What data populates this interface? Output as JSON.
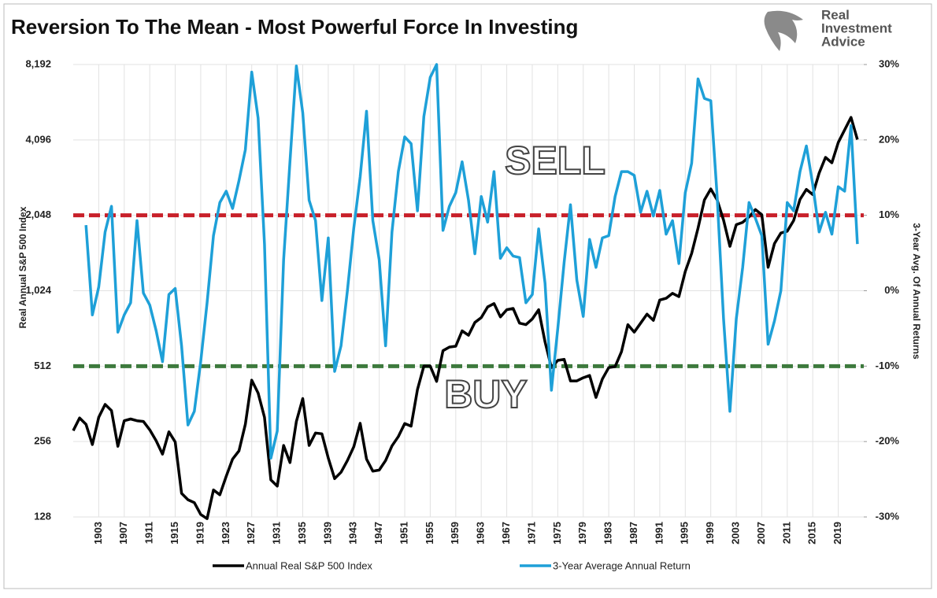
{
  "chart_data": {
    "type": "line",
    "title": "Reversion To The Mean - Most Powerful Force In Investing",
    "logo": [
      "Real",
      "Investment",
      "Advice"
    ],
    "y_label": "Real Annual S&P 500 Index",
    "y2_label": "3-Year Avg. Of Annual Returns",
    "x": [
      1899,
      1900,
      1901,
      1902,
      1903,
      1904,
      1905,
      1906,
      1907,
      1908,
      1909,
      1910,
      1911,
      1912,
      1913,
      1914,
      1915,
      1916,
      1917,
      1918,
      1919,
      1920,
      1921,
      1922,
      1923,
      1924,
      1925,
      1926,
      1927,
      1928,
      1929,
      1930,
      1931,
      1932,
      1933,
      1934,
      1935,
      1936,
      1937,
      1938,
      1939,
      1940,
      1941,
      1942,
      1943,
      1944,
      1945,
      1946,
      1947,
      1948,
      1949,
      1950,
      1951,
      1952,
      1953,
      1954,
      1955,
      1956,
      1957,
      1958,
      1959,
      1960,
      1961,
      1962,
      1963,
      1964,
      1965,
      1966,
      1967,
      1968,
      1969,
      1970,
      1971,
      1972,
      1973,
      1974,
      1975,
      1976,
      1977,
      1978,
      1979,
      1980,
      1981,
      1982,
      1983,
      1984,
      1985,
      1986,
      1987,
      1988,
      1989,
      1990,
      1991,
      1992,
      1993,
      1994,
      1995,
      1996,
      1997,
      1998,
      1999,
      2000,
      2001,
      2002,
      2003,
      2004,
      2005,
      2006,
      2007,
      2008,
      2009,
      2010,
      2011,
      2012,
      2013,
      2014,
      2015,
      2016,
      2017,
      2018,
      2019,
      2020,
      2021,
      2022
    ],
    "xlim": [
      1899,
      2023
    ],
    "xticks": [
      1903,
      1907,
      1911,
      1915,
      1919,
      1923,
      1927,
      1931,
      1935,
      1939,
      1943,
      1947,
      1951,
      1955,
      1959,
      1963,
      1967,
      1971,
      1975,
      1979,
      1983,
      1987,
      1991,
      1995,
      1999,
      2003,
      2007,
      2011,
      2015,
      2019
    ],
    "y_scale": "log",
    "ylim": [
      128,
      8192
    ],
    "yticks": [
      128,
      256,
      512,
      {
        "value": 1024,
        "label": "1,024"
      },
      {
        "value": 2048,
        "label": "2,048"
      },
      {
        "value": 4096,
        "label": "4,096"
      },
      {
        "value": 8192,
        "label": "8,192"
      }
    ],
    "y2lim": [
      -30,
      30
    ],
    "y2ticks": [
      {
        "value": -30,
        "label": "-30%"
      },
      {
        "value": -20,
        "label": "-20%"
      },
      {
        "value": -10,
        "label": "-10%"
      },
      {
        "value": 0,
        "label": "0%"
      },
      {
        "value": 10,
        "label": "10%"
      },
      {
        "value": 20,
        "label": "20%"
      },
      {
        "value": 30,
        "label": "30%"
      }
    ],
    "grid": true,
    "series": [
      {
        "name": "Annual Real S&P 500 Index",
        "color": "#000000",
        "values": [
          283,
          318,
          300,
          249,
          320,
          360,
          340,
          245,
          310,
          315,
          310,
          308,
          285,
          258,
          228,
          280,
          255,
          159,
          150,
          146,
          131,
          126,
          164,
          157,
          186,
          218,
          235,
          300,
          450,
          400,
          320,
          180,
          170,
          247,
          211,
          308,
          380,
          247,
          277,
          275,
          220,
          182,
          193,
          215,
          244,
          303,
          218,
          195,
          197,
          215,
          246,
          268,
          302,
          295,
          413,
          512,
          512,
          445,
          590,
          610,
          615,
          708,
          680,
          765,
          800,
          882,
          910,
          805,
          860,
          870,
          760,
          750,
          790,
          860,
          640,
          505,
          540,
          545,
          447,
          447,
          460,
          470,
          384,
          455,
          505,
          510,
          585,
          750,
          700,
          760,
          826,
          780,
          940,
          955,
          1000,
          970,
          1222,
          1443,
          1820,
          2360,
          2610,
          2360,
          1960,
          1540,
          1880,
          1920,
          2020,
          2160,
          2060,
          1270,
          1580,
          1740,
          1770,
          1950,
          2370,
          2600,
          2480,
          3020,
          3490,
          3320,
          4000,
          4490,
          5040,
          4110
        ]
      },
      {
        "name": "3-Year Average Annual Return",
        "color": "#1ea0d8",
        "axis": "y2",
        "values": [
          null,
          null,
          8.7,
          -3.2,
          0.5,
          7.8,
          11.2,
          -5.5,
          -3.2,
          -1.6,
          9.3,
          -0.3,
          -1.9,
          -5.3,
          -9.4,
          -0.5,
          0.3,
          -7.3,
          -17.8,
          -16.0,
          -9.4,
          -1.6,
          7.3,
          11.7,
          13.2,
          10.9,
          14.6,
          18.7,
          29.0,
          22.9,
          6.2,
          -22.2,
          -18.6,
          4.1,
          17.2,
          29.8,
          23.6,
          12.0,
          9.3,
          -1.3,
          7.0,
          -10.7,
          -7.3,
          0,
          8.3,
          15.1,
          23.8,
          9.3,
          4.1,
          -7.3,
          7.8,
          15.8,
          20.4,
          19.5,
          10.6,
          23.1,
          28.3,
          30,
          8.0,
          11.2,
          13.0,
          17.1,
          12.0,
          4.9,
          12.5,
          9.1,
          15.8,
          4.3,
          5.7,
          4.6,
          4.4,
          -1.6,
          -0.5,
          8.2,
          1.0,
          -13.2,
          -5.0,
          3.8,
          11.4,
          1.4,
          -3.4,
          6.8,
          3.1,
          7.0,
          7.3,
          12.5,
          15.8,
          15.8,
          15.3,
          10.4,
          13.2,
          9.9,
          13.3,
          7.5,
          9.3,
          3.6,
          13.0,
          16.9,
          28.1,
          25.5,
          25.2,
          12.5,
          -3.7,
          -16.0,
          -3.7,
          3.1,
          11.7,
          9.6,
          7.3,
          -7.1,
          -4.0,
          0,
          11.7,
          10.6,
          15.8,
          19.2,
          14.1,
          7.8,
          10.4,
          7.5,
          13.8,
          13.2,
          21.9,
          6.2
        ]
      }
    ],
    "reference_lines": [
      {
        "value": 10,
        "axis": "y2",
        "color": "#c8202a"
      },
      {
        "value": -10,
        "axis": "y2",
        "color": "#3d7a3d"
      }
    ],
    "annotations": [
      "SELL",
      "BUY"
    ]
  }
}
